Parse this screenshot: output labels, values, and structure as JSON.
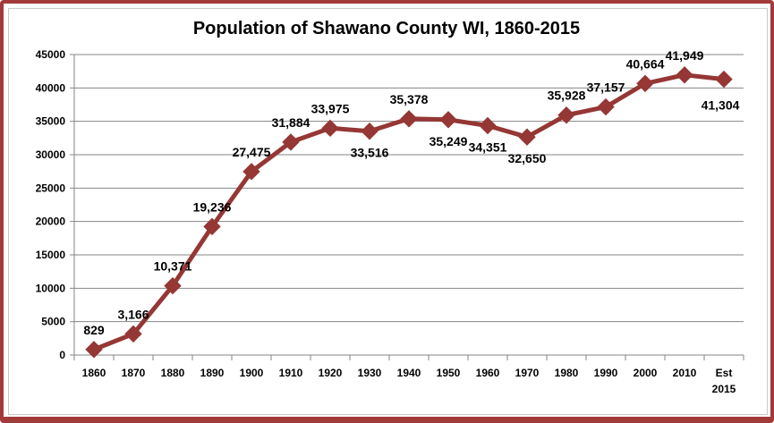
{
  "chart_data": {
    "type": "line",
    "title": "Population of Shawano County WI, 1860-2015",
    "xlabel": "",
    "ylabel": "",
    "ylim": [
      0,
      45000
    ],
    "yticks": [
      0,
      5000,
      10000,
      15000,
      20000,
      25000,
      30000,
      35000,
      40000,
      45000
    ],
    "grid": true,
    "legend": "none",
    "categories": [
      [
        "1860"
      ],
      [
        "1870"
      ],
      [
        "1880"
      ],
      [
        "1890"
      ],
      [
        "1900"
      ],
      [
        "1910"
      ],
      [
        "1920"
      ],
      [
        "1930"
      ],
      [
        "1940"
      ],
      [
        "1950"
      ],
      [
        "1960"
      ],
      [
        "1970"
      ],
      [
        "1980"
      ],
      [
        "1990"
      ],
      [
        "2000"
      ],
      [
        "2010"
      ],
      [
        "Est",
        "2015"
      ]
    ],
    "series": [
      {
        "values": [
          829,
          3166,
          10371,
          19236,
          27475,
          31884,
          33975,
          33516,
          35378,
          35249,
          34351,
          32650,
          35928,
          37157,
          40664,
          41949,
          41304
        ],
        "data_labels": [
          "829",
          "3,166",
          "10,371",
          "19,236",
          "27,475",
          "31,884",
          "33,975",
          "33,516",
          "35,378",
          "35,249",
          "34,351",
          "32,650",
          "35,928",
          "37,157",
          "40,664",
          "41,949",
          "41,304"
        ],
        "color": "#953735"
      }
    ],
    "colors": {
      "line": "#953735",
      "grid": "#868686",
      "frame": "#a33a3a"
    }
  }
}
